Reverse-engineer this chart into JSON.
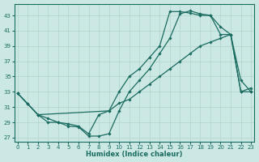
{
  "xlabel": "Humidex (Indice chaleur)",
  "bg_color": "#cce8e4",
  "line_color": "#1a6b60",
  "grid_color": "#b0d4cc",
  "xlim": [
    -0.3,
    23.3
  ],
  "ylim": [
    26.5,
    44.5
  ],
  "yticks": [
    27,
    29,
    31,
    33,
    35,
    37,
    39,
    41,
    43
  ],
  "xticks": [
    0,
    1,
    2,
    3,
    4,
    5,
    6,
    7,
    8,
    9,
    10,
    11,
    12,
    13,
    14,
    15,
    16,
    17,
    18,
    19,
    20,
    21,
    22,
    23
  ],
  "line1_x": [
    0,
    1,
    2,
    3,
    4,
    5,
    6,
    7,
    8,
    9,
    10,
    11,
    12,
    13,
    14,
    15,
    16,
    17,
    18,
    19,
    20,
    21,
    22,
    23
  ],
  "line1_y": [
    32.8,
    31.4,
    30.0,
    29.0,
    29.0,
    28.5,
    28.4,
    27.2,
    27.2,
    27.5,
    30.5,
    33.0,
    34.5,
    36.0,
    38.0,
    40.0,
    43.2,
    43.6,
    43.2,
    43.0,
    41.5,
    40.5,
    34.5,
    33.0
  ],
  "line2_x": [
    0,
    1,
    2,
    3,
    4,
    5,
    6,
    7,
    8,
    9,
    10,
    11,
    12,
    13,
    14,
    15,
    16,
    17,
    18,
    19,
    20,
    21,
    22,
    23
  ],
  "line2_y": [
    32.8,
    31.4,
    30.0,
    29.5,
    29.0,
    28.8,
    28.5,
    27.5,
    30.0,
    30.5,
    33.0,
    35.0,
    36.0,
    37.5,
    39.0,
    43.5,
    43.5,
    43.3,
    43.0,
    43.0,
    40.5,
    40.5,
    33.0,
    33.0
  ],
  "line3_x": [
    0,
    2,
    9,
    10,
    11,
    12,
    13,
    14,
    15,
    16,
    17,
    18,
    19,
    20,
    21,
    22,
    23
  ],
  "line3_y": [
    32.8,
    30.0,
    30.5,
    31.5,
    32.0,
    33.0,
    34.0,
    35.0,
    36.0,
    37.0,
    38.0,
    39.0,
    39.5,
    40.0,
    40.5,
    33.0,
    33.5
  ]
}
